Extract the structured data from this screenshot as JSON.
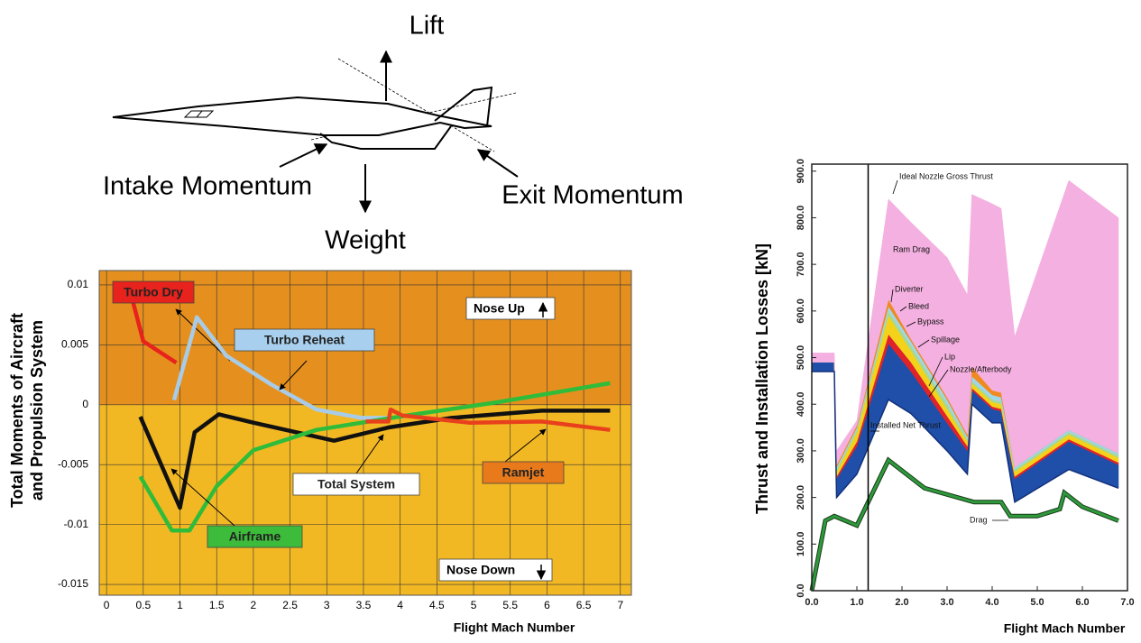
{
  "diagram": {
    "labels": [
      "Lift",
      "Intake Momentum",
      "Exit Momentum",
      "Weight"
    ]
  },
  "chart_data": [
    {
      "type": "line",
      "x_label": "Flight Mach Number",
      "y_label": [
        "Total Moments of Aircraft",
        "and Propulsion System"
      ],
      "xlim": [
        -0.1,
        7.15
      ],
      "ylim": [
        -0.0159,
        0.0112
      ],
      "xticks": [
        0,
        0.5,
        1,
        1.5,
        2,
        2.5,
        3,
        3.5,
        4,
        4.5,
        5,
        5.5,
        6,
        6.5,
        7
      ],
      "yticks": [
        0.01,
        0.005,
        0,
        -0.005,
        -0.01,
        -0.015
      ],
      "grid": true,
      "annotations": [
        "Nose Up",
        "Nose Down"
      ],
      "series": [
        {
          "name": "Turbo Dry",
          "color": "#e8221c",
          "x": [
            0.3,
            0.5,
            0.95
          ],
          "values": [
            0.01,
            0.0053,
            0.0035
          ]
        },
        {
          "name": "Turbo Reheat",
          "color": "#a8cce8",
          "x": [
            0.92,
            1.23,
            1.63,
            2.24,
            2.86,
            3.47,
            3.84
          ],
          "values": [
            0.0004,
            0.0073,
            0.0041,
            0.0017,
            -0.0004,
            -0.0011,
            -0.0011
          ]
        },
        {
          "name": "Total System",
          "color": "#111111",
          "x": [
            0.46,
            1.0,
            1.2,
            1.53,
            2.0,
            3.1,
            3.84,
            4.7,
            5.93,
            6.86
          ],
          "values": [
            -0.001,
            -0.0086,
            -0.0023,
            -0.0008,
            -0.0015,
            -0.003,
            -0.0019,
            -0.0011,
            -0.0005,
            -0.0005
          ]
        },
        {
          "name": "Airframe",
          "color": "#2ebc3a",
          "x": [
            0.46,
            0.89,
            1.13,
            1.5,
            2.0,
            2.86,
            4.09,
            5.32,
            6.86
          ],
          "values": [
            -0.006,
            -0.0105,
            -0.0105,
            -0.0068,
            -0.0038,
            -0.0021,
            -0.0009,
            0.0002,
            0.0018
          ]
        },
        {
          "name": "Ramjet",
          "color": "#e8401c",
          "x": [
            3.53,
            3.84,
            3.87,
            4.03,
            4.95,
            5.93,
            6.86
          ],
          "values": [
            -0.0014,
            -0.0014,
            -0.0004,
            -0.0009,
            -0.0015,
            -0.0014,
            -0.0021
          ]
        }
      ]
    },
    {
      "type": "stacked_area",
      "x_label": "Flight Mach Number",
      "y_label": "Thrust and Installation Losses [kN]",
      "xlim": [
        0,
        7
      ],
      "ylim": [
        0,
        915
      ],
      "xticks": [
        {
          "value": 0,
          "label": "0.0"
        },
        {
          "value": 1,
          "label": "1.0"
        },
        {
          "value": 2,
          "label": "2.0"
        },
        {
          "value": 3,
          "label": "3.0"
        },
        {
          "value": 4,
          "label": "4.0"
        },
        {
          "value": 5,
          "label": "5.0"
        },
        {
          "value": 6,
          "label": "6.0"
        },
        {
          "value": 7,
          "label": "7.0"
        }
      ],
      "yticks": [
        {
          "value": 0,
          "label": "0.0"
        },
        {
          "value": 100,
          "label": "100.0"
        },
        {
          "value": 200,
          "label": "200.0"
        },
        {
          "value": 300,
          "label": "300.0"
        },
        {
          "value": 400,
          "label": "400.0"
        },
        {
          "value": 500,
          "label": "500.0"
        },
        {
          "value": 600,
          "label": "600.0"
        },
        {
          "value": 700,
          "label": "700.0"
        },
        {
          "value": 800,
          "label": "800.0"
        },
        {
          "value": 900,
          "label": "900.0"
        }
      ],
      "x": [
        0,
        0.5,
        0.55,
        1.0,
        1.7,
        2.2,
        3.0,
        3.45,
        3.55,
        4.0,
        4.2,
        4.5,
        5.7,
        6.8
      ],
      "base": {
        "name": "Installed Net Thrust",
        "color": "#12307a",
        "values": [
          470,
          470,
          200,
          250,
          410,
          380,
          300,
          250,
          400,
          360,
          360,
          190,
          260,
          220
        ]
      },
      "series": [
        {
          "name": "Nozzle/Afterbody",
          "color": "#1f4fa8",
          "values": [
            20,
            20,
            40,
            60,
            120,
            90,
            60,
            50,
            30,
            30,
            25,
            50,
            60,
            50
          ]
        },
        {
          "name": "Lip",
          "color": "#e0222a",
          "values": [
            0,
            0,
            5,
            10,
            20,
            20,
            15,
            10,
            5,
            5,
            5,
            5,
            5,
            5
          ]
        },
        {
          "name": "Spillage",
          "color": "#f5d21a",
          "values": [
            0,
            0,
            10,
            20,
            40,
            25,
            15,
            10,
            10,
            10,
            10,
            10,
            10,
            10
          ]
        },
        {
          "name": "Bypass",
          "color": "#a8d890",
          "values": [
            0,
            0,
            5,
            5,
            10,
            10,
            10,
            5,
            5,
            5,
            5,
            5,
            5,
            5
          ]
        },
        {
          "name": "Bleed",
          "color": "#9fd6e8",
          "values": [
            0,
            0,
            5,
            5,
            10,
            10,
            10,
            5,
            10,
            10,
            10,
            5,
            5,
            5
          ]
        },
        {
          "name": "Diverter",
          "color": "#f08a20",
          "values": [
            0,
            0,
            5,
            5,
            15,
            5,
            5,
            5,
            20,
            10,
            10,
            0,
            0,
            0
          ]
        },
        {
          "name": "Ram Drag",
          "color": "#f4b0e0",
          "values": [
            20,
            20,
            30,
            10,
            215,
            250,
            300,
            300,
            370,
            400,
            395,
            280,
            535,
            505
          ]
        }
      ],
      "top_label": "Ideal Nozzle Gross Thrust",
      "lines": [
        {
          "name": "Drag",
          "color": "#2e9a3c",
          "x": [
            0,
            0.3,
            0.5,
            1.0,
            1.7,
            2.5,
            3.6,
            4.2,
            4.4,
            5.0,
            5.5,
            5.6,
            6.0,
            6.8
          ],
          "values": [
            0,
            150,
            160,
            140,
            280,
            220,
            190,
            190,
            160,
            160,
            175,
            210,
            180,
            150
          ]
        }
      ],
      "vline": 1.25
    }
  ]
}
